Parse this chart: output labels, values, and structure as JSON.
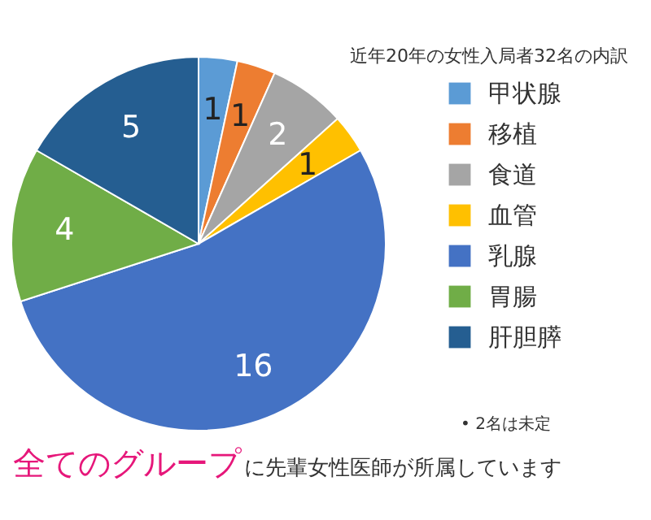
{
  "chart_data": {
    "type": "pie",
    "title": "近年20年の女性入局者32名の内訳",
    "categories": [
      "甲状腺",
      "移植",
      "食道",
      "血管",
      "乳腺",
      "胃腸",
      "肝胆膵"
    ],
    "values": [
      1,
      1,
      2,
      1,
      16,
      4,
      5
    ],
    "colors": [
      "#5b9bd5",
      "#ed7d31",
      "#a5a5a5",
      "#ffc000",
      "#4472c4",
      "#70ad47",
      "#255e91"
    ],
    "data_labels": true,
    "legend": "right",
    "annotations": [
      "• 2名は未定",
      "全てのグループ",
      "に先輩女性医師が所属しています"
    ]
  }
}
